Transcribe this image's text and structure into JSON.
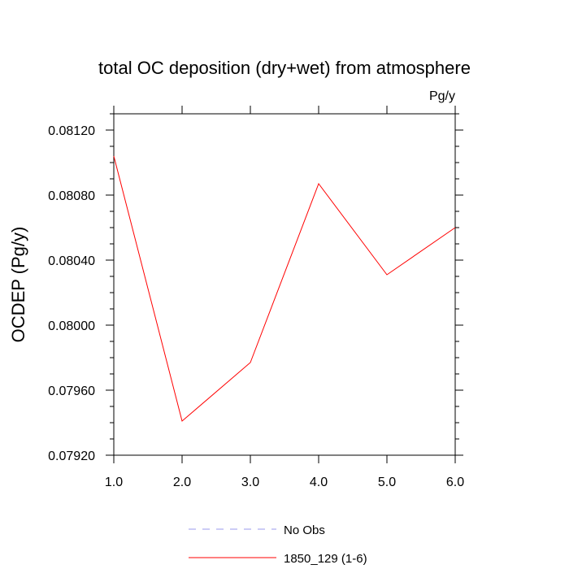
{
  "chart_data": {
    "type": "line",
    "title": "total OC deposition (dry+wet) from atmosphere",
    "units_label": "Pg/y",
    "xlabel": "",
    "ylabel": "OCDEP  (Pg/y)",
    "xlim": [
      1.0,
      6.0
    ],
    "ylim": [
      0.0792,
      0.0813
    ],
    "x_ticks": [
      1.0,
      2.0,
      3.0,
      4.0,
      5.0,
      6.0
    ],
    "x_tick_labels": [
      "1.0",
      "2.0",
      "3.0",
      "4.0",
      "5.0",
      "6.0"
    ],
    "y_ticks": [
      0.0792,
      0.0796,
      0.08,
      0.0804,
      0.0808,
      0.0812
    ],
    "y_tick_labels": [
      "0.07920",
      "0.07960",
      "0.08000",
      "0.08040",
      "0.08080",
      "0.08120"
    ],
    "grid": false,
    "legend_position": "bottom-center",
    "series": [
      {
        "name": "1850_129 (1-6)",
        "color": "#ff0000",
        "dash": "solid",
        "x": [
          1,
          2,
          3,
          4,
          5,
          6
        ],
        "values": [
          0.08104,
          0.07941,
          0.07977,
          0.08087,
          0.08031,
          0.0806
        ]
      }
    ],
    "legend": [
      {
        "label": "No Obs",
        "color": "#9999ee",
        "dash": "dashed"
      },
      {
        "label": "1850_129 (1-6)",
        "color": "#ff0000",
        "dash": "solid"
      }
    ]
  }
}
